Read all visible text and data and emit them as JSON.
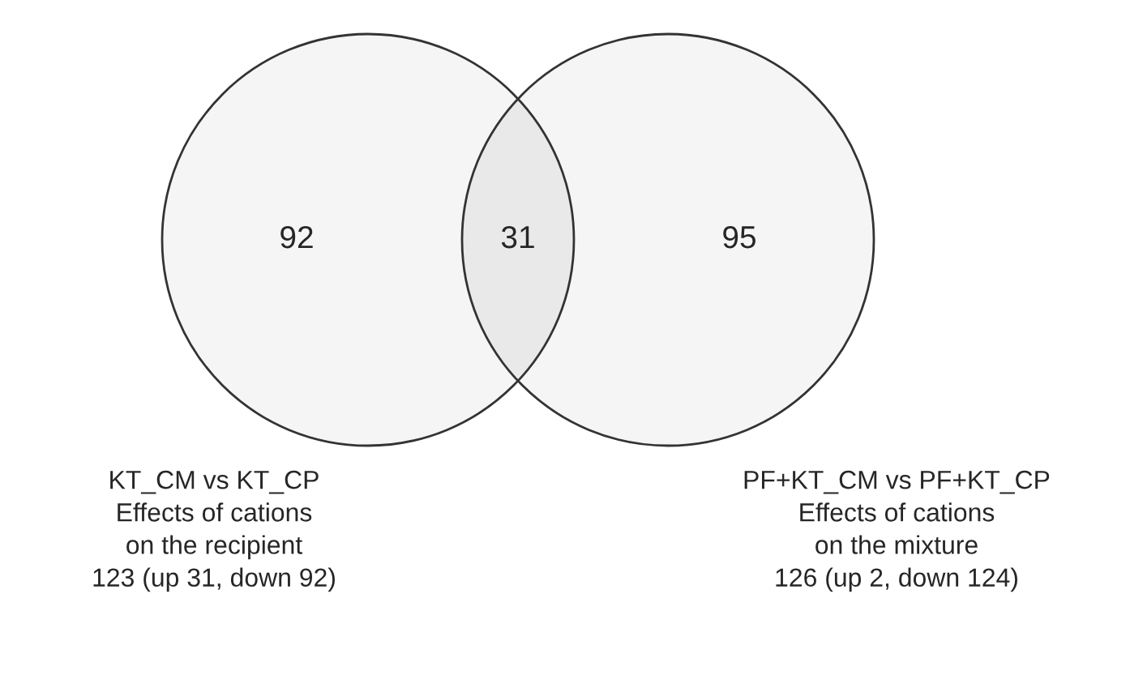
{
  "chart_data": {
    "type": "other",
    "categories": [
      null,
      null,
      null
    ],
    "values": [
      92,
      31,
      95
    ],
    "colors": [
      "#f5f5f5",
      "#e9e9e9",
      "#f5f5f5"
    ],
    "data_labels": true,
    "annotations": [
      "KT_CM vs KT_CP\nEffects of cations\non the recipient\n123 (up 31, down 92)",
      "PF+KT_CM vs PF+KT_CP\nEffects of cations\non the mixture\n126 (up 2, down 124)"
    ]
  }
}
